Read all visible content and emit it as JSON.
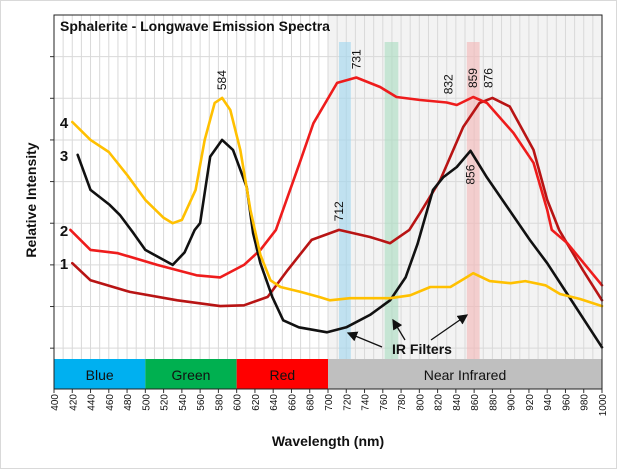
{
  "chart_data": {
    "type": "line",
    "title": "Sphalerite - Longwave Emission Spectra",
    "xlabel": "Wavelength (nm)",
    "ylabel": "Relative Intensity",
    "xlim": [
      400,
      1000
    ],
    "ylim": [
      -0.26,
      8
    ],
    "x_ticks": [
      400,
      420,
      440,
      460,
      480,
      500,
      520,
      540,
      560,
      580,
      600,
      620,
      640,
      660,
      680,
      700,
      720,
      740,
      760,
      780,
      800,
      820,
      840,
      860,
      880,
      900,
      920,
      940,
      960,
      980,
      1000
    ],
    "grid": true,
    "series": [
      {
        "name": "1",
        "color": "#b81414",
        "x": [
          420,
          440,
          483,
          535,
          582,
          608,
          634,
          656,
          682,
          712,
          746,
          768,
          789,
          801,
          823,
          848,
          866,
          880,
          899,
          925,
          940,
          953,
          979,
          1000
        ],
        "y": [
          2.04,
          1.63,
          1.35,
          1.15,
          1.01,
          1.03,
          1.23,
          1.88,
          2.6,
          2.84,
          2.67,
          2.52,
          2.84,
          3.25,
          4.04,
          5.31,
          5.89,
          6.01,
          5.8,
          4.76,
          3.56,
          2.84,
          1.88,
          1.15
        ]
      },
      {
        "name": "2",
        "color": "#ee1c1c",
        "x": [
          418,
          440,
          470,
          513,
          556,
          582,
          608,
          626,
          643,
          669,
          684,
          710,
          731,
          757,
          775,
          801,
          830,
          841,
          859,
          874,
          903,
          925,
          940,
          945,
          962,
          1000
        ],
        "y": [
          2.84,
          2.36,
          2.28,
          2.0,
          1.75,
          1.7,
          2.0,
          2.36,
          2.84,
          4.45,
          5.4,
          6.37,
          6.5,
          6.27,
          6.03,
          5.96,
          5.9,
          5.84,
          6.03,
          5.89,
          5.17,
          4.45,
          3.32,
          2.84,
          2.52,
          1.51
        ]
      },
      {
        "name": "3",
        "color": "#111111",
        "x": [
          426,
          440,
          461,
          472,
          487,
          500,
          530,
          543,
          554,
          560,
          571,
          584,
          596,
          611,
          618,
          626,
          639,
          651,
          668,
          699,
          720,
          746,
          768,
          785,
          798,
          815,
          826,
          841,
          856,
          874,
          896,
          921,
          940,
          962,
          1000
        ],
        "y": [
          4.64,
          3.8,
          3.44,
          3.2,
          2.76,
          2.36,
          2.0,
          2.3,
          2.84,
          3.0,
          4.6,
          5.0,
          4.76,
          3.87,
          2.76,
          2.04,
          1.23,
          0.67,
          0.5,
          0.38,
          0.5,
          0.8,
          1.15,
          1.7,
          2.5,
          3.8,
          4.1,
          4.35,
          4.74,
          4.1,
          3.4,
          2.6,
          2.04,
          1.3,
          0.02
        ]
      },
      {
        "name": "4",
        "color": "#ffc000",
        "x": [
          420,
          440,
          460,
          480,
          500,
          520,
          530,
          540,
          555,
          565,
          576,
          584,
          593,
          604,
          615,
          626,
          637,
          648,
          670,
          690,
          702,
          724,
          746,
          768,
          790,
          812,
          834,
          850,
          859,
          877,
          900,
          916,
          938,
          954,
          976,
          1000
        ],
        "y": [
          5.43,
          5.0,
          4.71,
          4.16,
          3.56,
          3.13,
          3.0,
          3.08,
          3.8,
          5.0,
          5.89,
          6.01,
          5.72,
          4.76,
          3.32,
          2.24,
          1.63,
          1.47,
          1.35,
          1.23,
          1.15,
          1.2,
          1.2,
          1.2,
          1.27,
          1.47,
          1.47,
          1.68,
          1.8,
          1.61,
          1.56,
          1.61,
          1.51,
          1.3,
          1.18,
          1.01
        ]
      }
    ],
    "curve_labels": [
      {
        "text": "4",
        "y": 5.43
      },
      {
        "text": "3",
        "y": 4.64
      },
      {
        "text": "2",
        "y": 2.84
      },
      {
        "text": "1",
        "y": 2.04
      }
    ],
    "peak_labels": [
      {
        "text": "584",
        "x": 584,
        "y": 6.1,
        "pos": "above"
      },
      {
        "text": "731",
        "x": 731,
        "y": 6.6,
        "pos": "above"
      },
      {
        "text": "712",
        "x": 712,
        "y": 2.95,
        "pos": "above"
      },
      {
        "text": "832",
        "x": 832,
        "y": 6.0,
        "pos": "above"
      },
      {
        "text": "859",
        "x": 859,
        "y": 6.15,
        "pos": "above"
      },
      {
        "text": "876",
        "x": 876,
        "y": 6.15,
        "pos": "above"
      },
      {
        "text": "856",
        "x": 856,
        "y": 4.6,
        "pos": "below"
      }
    ],
    "filter_bands": [
      {
        "from": 712,
        "to": 725,
        "color": "#9fd5ee"
      },
      {
        "from": 762,
        "to": 777,
        "color": "#a9dcc0"
      },
      {
        "from": 852,
        "to": 866,
        "color": "#f4b6b6"
      }
    ],
    "annotation": {
      "text": "IR Filters"
    },
    "spectrum_bands": [
      {
        "label": "Blue",
        "from": 400,
        "to": 500,
        "color": "#00b0f0"
      },
      {
        "label": "Green",
        "from": 500,
        "to": 600,
        "color": "#00b050"
      },
      {
        "label": "Red",
        "from": 600,
        "to": 700,
        "color": "#ff0000"
      },
      {
        "label": "Near Infrared",
        "from": 700,
        "to": 1000,
        "color": "#bfbfbf"
      }
    ]
  }
}
